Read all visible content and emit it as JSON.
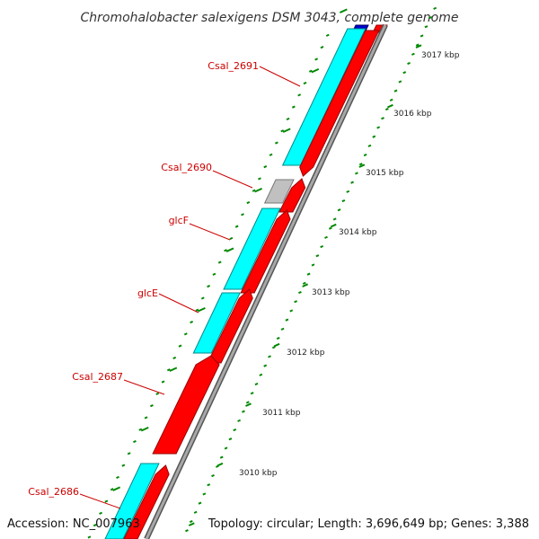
{
  "title": "Chromohalobacter salexigens DSM 3043, complete genome",
  "footer": {
    "accession": "Accession: NC_007963",
    "topology": "Topology: circular; Length: 3,696,649 bp; Genes: 3,388"
  },
  "colors": {
    "forward": "#00ffff",
    "reverse": "#ff0000",
    "other": "#c0c0c0",
    "backbone": "#888888",
    "ticks": "#008800",
    "label": "#cc0000"
  },
  "kbp_labels": [
    "3017 kbp",
    "3016 kbp",
    "3015 kbp",
    "3014 kbp",
    "3013 kbp",
    "3012 kbp",
    "3011 kbp",
    "3010 kbp"
  ],
  "gene_labels": [
    "Csal_2691",
    "Csal_2690",
    "glcF",
    "glcE",
    "Csal_2687",
    "Csal_2686"
  ]
}
